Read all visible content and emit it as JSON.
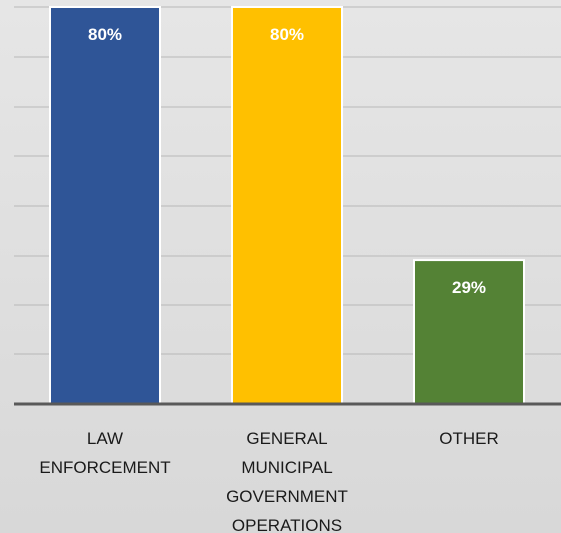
{
  "chart_data": {
    "type": "bar",
    "categories": [
      [
        "LAW",
        "ENFORCEMENT"
      ],
      [
        "GENERAL",
        "MUNICIPAL",
        "GOVERNMENT",
        "OPERATIONS"
      ],
      [
        "OTHER"
      ]
    ],
    "values": [
      80,
      80,
      29
    ],
    "data_labels": [
      "80%",
      "80%",
      "29%"
    ],
    "colors": [
      "#2f5597",
      "#ffc000",
      "#548235"
    ],
    "data_label_colors": [
      "#ffffff",
      "#ffffff",
      "#ffffff"
    ],
    "title": "",
    "xlabel": "",
    "ylabel": "",
    "ylim": [
      0,
      80
    ],
    "grid": true,
    "legend": "none"
  }
}
